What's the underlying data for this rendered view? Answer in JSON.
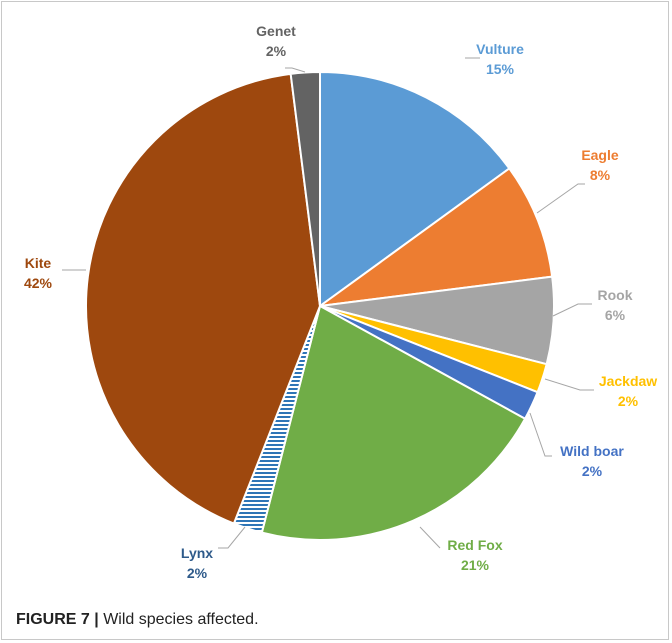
{
  "chart_data": {
    "type": "pie",
    "title": "",
    "slices": [
      {
        "name": "Vulture",
        "percent_label": "15%",
        "value": 15,
        "color": "#5B9BD5",
        "pattern": "solid"
      },
      {
        "name": "Eagle",
        "percent_label": "8%",
        "value": 8,
        "color": "#ED7D31",
        "pattern": "solid"
      },
      {
        "name": "Rook",
        "percent_label": "6%",
        "value": 6,
        "color": "#A5A5A5",
        "pattern": "solid"
      },
      {
        "name": "Jackdaw",
        "percent_label": "2%",
        "value": 2,
        "color": "#FFC000",
        "pattern": "solid"
      },
      {
        "name": "Wild boar",
        "percent_label": "2%",
        "value": 2,
        "color": "#4472C4",
        "pattern": "solid"
      },
      {
        "name": "Red Fox",
        "percent_label": "21%",
        "value": 21,
        "color": "#70AD47",
        "pattern": "solid"
      },
      {
        "name": "Lynx",
        "percent_label": "2%",
        "value": 2,
        "color": "#2E75B6",
        "pattern": "horizontal-stripes"
      },
      {
        "name": "Kite",
        "percent_label": "42%",
        "value": 42,
        "color": "#9E480E",
        "pattern": "solid"
      },
      {
        "name": "Genet",
        "percent_label": "2%",
        "value": 2,
        "color": "#636363",
        "pattern": "solid"
      }
    ],
    "label_colors": {
      "Vulture": "#5B9BD5",
      "Eagle": "#ED7D31",
      "Rook": "#A5A5A5",
      "Jackdaw": "#FFC000",
      "Wild boar": "#4472C4",
      "Red Fox": "#70AD47",
      "Lynx": "#2E5A8A",
      "Kite": "#9E480E",
      "Genet": "#636363"
    },
    "start_angle_deg": 0,
    "direction": "clockwise"
  },
  "caption": {
    "figure_number": "FIGURE 7",
    "separator": "|",
    "text": "Wild species affected."
  }
}
